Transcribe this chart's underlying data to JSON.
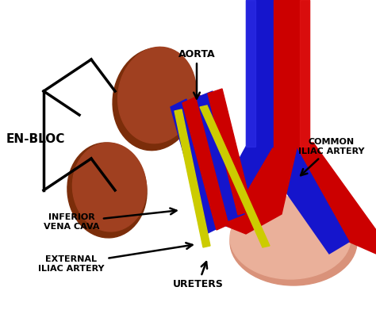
{
  "bg_color": "#ffffff",
  "kidney_color": "#7B2D0A",
  "kidney_highlight": "#A04020",
  "aorta_color": "#CC0000",
  "aorta_light": "#EE2222",
  "vena_color": "#1515CC",
  "vena_light": "#3333EE",
  "ureter_color": "#CCCC00",
  "bladder_color": "#D9927A",
  "bladder_light": "#EAB09A",
  "label_color": "#000000",
  "labels": {
    "en_bloc": "EN-BLOC",
    "aorta": "AORTA",
    "common_iliac": "COMMON\nILIAC ARTERY",
    "inferior_vena": "INFERIOR\nVENA CAVA",
    "external_iliac": "EXTERNAL\nILIAC ARTERY",
    "ureters": "URETERS"
  },
  "figsize": [
    4.74,
    3.91
  ],
  "dpi": 100
}
